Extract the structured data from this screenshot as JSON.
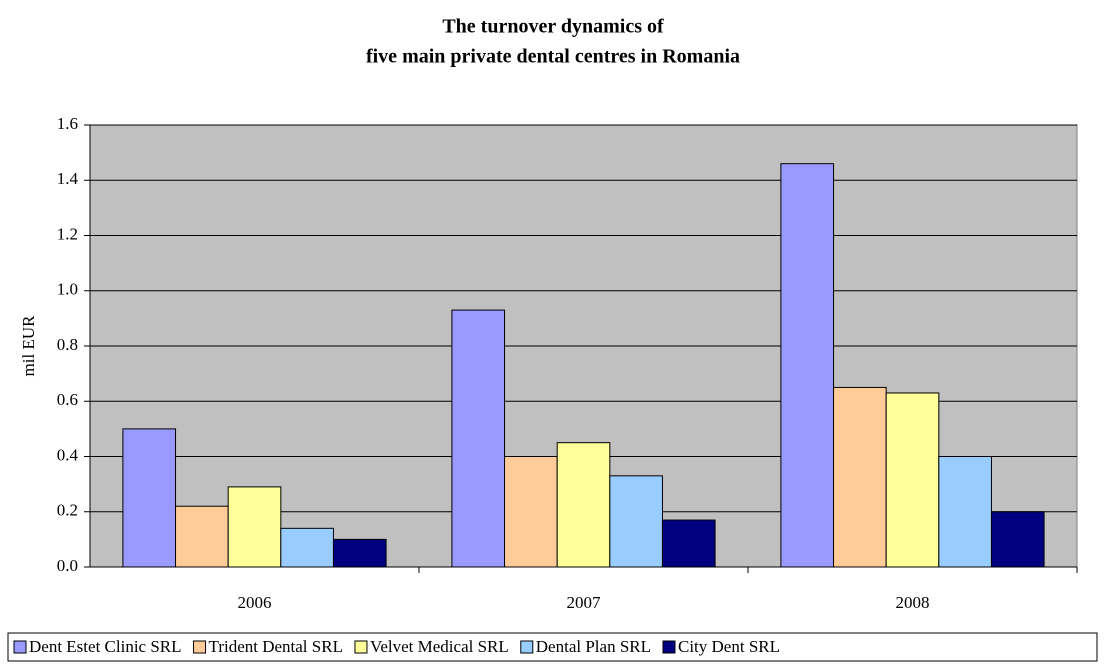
{
  "chart_data": {
    "type": "bar",
    "title": [
      "The turnover dynamics of",
      "five main private dental centres in Romania"
    ],
    "y_label": "mil EUR",
    "categories": [
      "2006",
      "2007",
      "2008"
    ],
    "series": [
      {
        "name": "Dent Estet Clinic SRL",
        "color": "#9999ff",
        "values": [
          0.5,
          0.93,
          1.46
        ]
      },
      {
        "name": "Trident Dental SRL",
        "color": "#ffcc99",
        "values": [
          0.22,
          0.4,
          0.65
        ]
      },
      {
        "name": "Velvet Medical SRL",
        "color": "#ffff99",
        "values": [
          0.29,
          0.45,
          0.63
        ]
      },
      {
        "name": "Dental Plan SRL",
        "color": "#99ccff",
        "values": [
          0.14,
          0.33,
          0.4
        ]
      },
      {
        "name": "City Dent SRL",
        "color": "#000080",
        "values": [
          0.1,
          0.17,
          0.2
        ]
      }
    ],
    "ylim": [
      0,
      1.6
    ],
    "yticks": [
      {
        "value": 0,
        "label": "0.0"
      },
      0.2,
      0.4,
      0.6,
      0.8,
      {
        "value": 1,
        "label": "1.0"
      },
      1.2,
      1.4,
      1.6
    ],
    "grid": true,
    "plot_background": "#c0c0c0",
    "legend": "bottom"
  }
}
